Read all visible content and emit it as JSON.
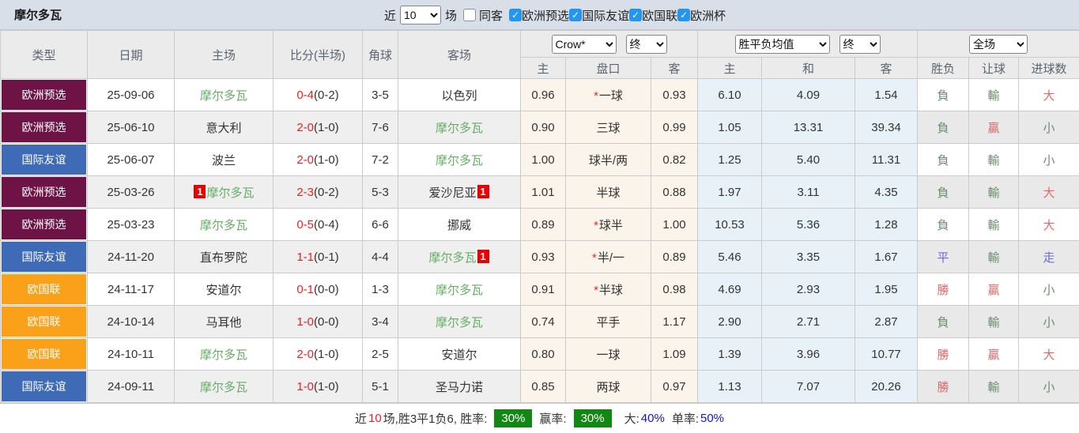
{
  "header": {
    "title": "摩尔多瓦",
    "recent_label": "近",
    "recent_value": "10",
    "games_label": "场",
    "same_venue": {
      "label": "同客",
      "checked": false
    },
    "filters": [
      {
        "label": "欧洲预选",
        "checked": true
      },
      {
        "label": "国际友谊",
        "checked": true
      },
      {
        "label": "欧国联",
        "checked": true
      },
      {
        "label": "欧洲杯",
        "checked": true
      }
    ]
  },
  "table": {
    "col_headers": [
      "类型",
      "日期",
      "主场",
      "比分(半场)",
      "角球",
      "客场"
    ],
    "dropdowns": {
      "company": "Crow*",
      "company_time": "终",
      "avg": "胜平负均值",
      "avg_time": "终",
      "scope": "全场"
    },
    "sub_headers": [
      "主",
      "盘口",
      "客",
      "主",
      "和",
      "客",
      "胜负",
      "让球",
      "进球数"
    ],
    "rows": [
      {
        "type": "欧洲预选",
        "type_color": "maroon",
        "date": "25-09-06",
        "home": "摩尔多瓦",
        "home_color": "green",
        "home_card": "",
        "score": "0-4",
        "half": "(0-2)",
        "corner": "3-5",
        "away": "以色列",
        "away_color": "black",
        "away_card": "",
        "o1": "0.96",
        "star": "*",
        "pan": "一球",
        "o2": "0.93",
        "a1": "6.10",
        "a2": "4.09",
        "a3": "1.54",
        "r1": "負",
        "r1c": "green",
        "r2": "輸",
        "r2c": "green",
        "r3": "大",
        "r3c": "red"
      },
      {
        "type": "欧洲预选",
        "type_color": "maroon",
        "date": "25-06-10",
        "home": "意大利",
        "home_color": "black",
        "home_card": "",
        "score": "2-0",
        "half": "(1-0)",
        "corner": "7-6",
        "away": "摩尔多瓦",
        "away_color": "green",
        "away_card": "",
        "o1": "0.90",
        "star": "",
        "pan": "三球",
        "o2": "0.99",
        "a1": "1.05",
        "a2": "13.31",
        "a3": "39.34",
        "r1": "負",
        "r1c": "green",
        "r2": "贏",
        "r2c": "red",
        "r3": "小",
        "r3c": "green"
      },
      {
        "type": "国际友谊",
        "type_color": "blue",
        "date": "25-06-07",
        "home": "波兰",
        "home_color": "black",
        "home_card": "",
        "score": "2-0",
        "half": "(1-0)",
        "corner": "7-2",
        "away": "摩尔多瓦",
        "away_color": "green",
        "away_card": "",
        "o1": "1.00",
        "star": "",
        "pan": "球半/两",
        "o2": "0.82",
        "a1": "1.25",
        "a2": "5.40",
        "a3": "11.31",
        "r1": "負",
        "r1c": "green",
        "r2": "輸",
        "r2c": "green",
        "r3": "小",
        "r3c": "green"
      },
      {
        "type": "欧洲预选",
        "type_color": "maroon",
        "date": "25-03-26",
        "home": "摩尔多瓦",
        "home_color": "green",
        "home_card": "1",
        "score": "2-3",
        "half": "(0-2)",
        "corner": "5-3",
        "away": "爱沙尼亚",
        "away_color": "black",
        "away_card": "1",
        "o1": "1.01",
        "star": "",
        "pan": "半球",
        "o2": "0.88",
        "a1": "1.97",
        "a2": "3.11",
        "a3": "4.35",
        "r1": "負",
        "r1c": "green",
        "r2": "輸",
        "r2c": "green",
        "r3": "大",
        "r3c": "red"
      },
      {
        "type": "欧洲预选",
        "type_color": "maroon",
        "date": "25-03-23",
        "home": "摩尔多瓦",
        "home_color": "green",
        "home_card": "",
        "score": "0-5",
        "half": "(0-4)",
        "corner": "6-6",
        "away": "挪威",
        "away_color": "black",
        "away_card": "",
        "o1": "0.89",
        "star": "*",
        "pan": "球半",
        "o2": "1.00",
        "a1": "10.53",
        "a2": "5.36",
        "a3": "1.28",
        "r1": "負",
        "r1c": "green",
        "r2": "輸",
        "r2c": "green",
        "r3": "大",
        "r3c": "red"
      },
      {
        "type": "国际友谊",
        "type_color": "blue",
        "date": "24-11-20",
        "home": "直布罗陀",
        "home_color": "black",
        "home_card": "",
        "score": "1-1",
        "half": "(0-1)",
        "corner": "4-4",
        "away": "摩尔多瓦",
        "away_color": "green",
        "away_card": "1",
        "o1": "0.93",
        "star": "*",
        "pan": "半/一",
        "o2": "0.89",
        "a1": "5.46",
        "a2": "3.35",
        "a3": "1.67",
        "r1": "平",
        "r1c": "blue",
        "r2": "輸",
        "r2c": "green",
        "r3": "走",
        "r3c": "blue"
      },
      {
        "type": "欧国联",
        "type_color": "orange",
        "date": "24-11-17",
        "home": "安道尔",
        "home_color": "black",
        "home_card": "",
        "score": "0-1",
        "half": "(0-0)",
        "corner": "1-3",
        "away": "摩尔多瓦",
        "away_color": "green",
        "away_card": "",
        "o1": "0.91",
        "star": "*",
        "pan": "半球",
        "o2": "0.98",
        "a1": "4.69",
        "a2": "2.93",
        "a3": "1.95",
        "r1": "勝",
        "r1c": "red",
        "r2": "贏",
        "r2c": "red",
        "r3": "小",
        "r3c": "green"
      },
      {
        "type": "欧国联",
        "type_color": "orange",
        "date": "24-10-14",
        "home": "马耳他",
        "home_color": "black",
        "home_card": "",
        "score": "1-0",
        "half": "(0-0)",
        "corner": "3-4",
        "away": "摩尔多瓦",
        "away_color": "green",
        "away_card": "",
        "o1": "0.74",
        "star": "",
        "pan": "平手",
        "o2": "1.17",
        "a1": "2.90",
        "a2": "2.71",
        "a3": "2.87",
        "r1": "負",
        "r1c": "green",
        "r2": "輸",
        "r2c": "green",
        "r3": "小",
        "r3c": "green"
      },
      {
        "type": "欧国联",
        "type_color": "orange",
        "date": "24-10-11",
        "home": "摩尔多瓦",
        "home_color": "green",
        "home_card": "",
        "score": "2-0",
        "half": "(1-0)",
        "corner": "2-5",
        "away": "安道尔",
        "away_color": "black",
        "away_card": "",
        "o1": "0.80",
        "star": "",
        "pan": "一球",
        "o2": "1.09",
        "a1": "1.39",
        "a2": "3.96",
        "a3": "10.77",
        "r1": "勝",
        "r1c": "red",
        "r2": "贏",
        "r2c": "red",
        "r3": "大",
        "r3c": "red"
      },
      {
        "type": "国际友谊",
        "type_color": "blue",
        "date": "24-09-11",
        "home": "摩尔多瓦",
        "home_color": "green",
        "home_card": "",
        "score": "1-0",
        "half": "(1-0)",
        "corner": "5-1",
        "away": "圣马力诺",
        "away_color": "black",
        "away_card": "",
        "o1": "0.85",
        "star": "",
        "pan": "两球",
        "o2": "0.97",
        "a1": "1.13",
        "a2": "7.07",
        "a3": "20.26",
        "r1": "勝",
        "r1c": "red",
        "r2": "輸",
        "r2c": "green",
        "r3": "小",
        "r3c": "green"
      }
    ]
  },
  "summary": {
    "part1": "近",
    "recent_count": "10",
    "part2": "场,胜3平1负6, 胜率:",
    "win_rate": "30%",
    "part3": "赢率:",
    "goal_win_rate": "30%",
    "part4": "大:",
    "big_rate": "40%",
    "part5": "单率:",
    "odd_rate": "50%"
  },
  "colors": {
    "type_maroon": "#6E1346",
    "type_blue": "#3F6AB5",
    "type_orange": "#FAA019",
    "team_green": "#66AE66",
    "win_red": "#E26868",
    "lose_green": "#6B8E6B",
    "draw_blue": "#6A6ADF",
    "score_red": "#EE2222",
    "summary_green": "#118811",
    "summary_blue": "#1414CC",
    "checkbox_blue": "#2196F3"
  }
}
